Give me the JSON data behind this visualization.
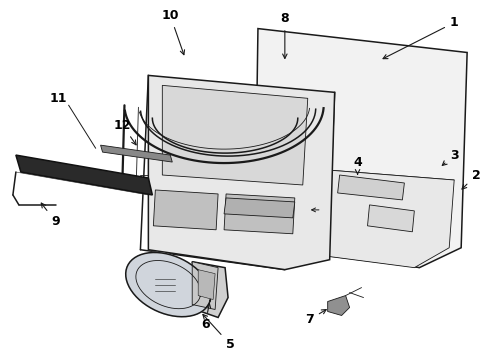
{
  "background_color": "#ffffff",
  "line_color": "#1a1a1a",
  "label_color": "#000000",
  "fig_width": 4.9,
  "fig_height": 3.6,
  "dpi": 100,
  "lw_main": 1.1,
  "lw_thin": 0.6,
  "lw_thick": 1.6
}
